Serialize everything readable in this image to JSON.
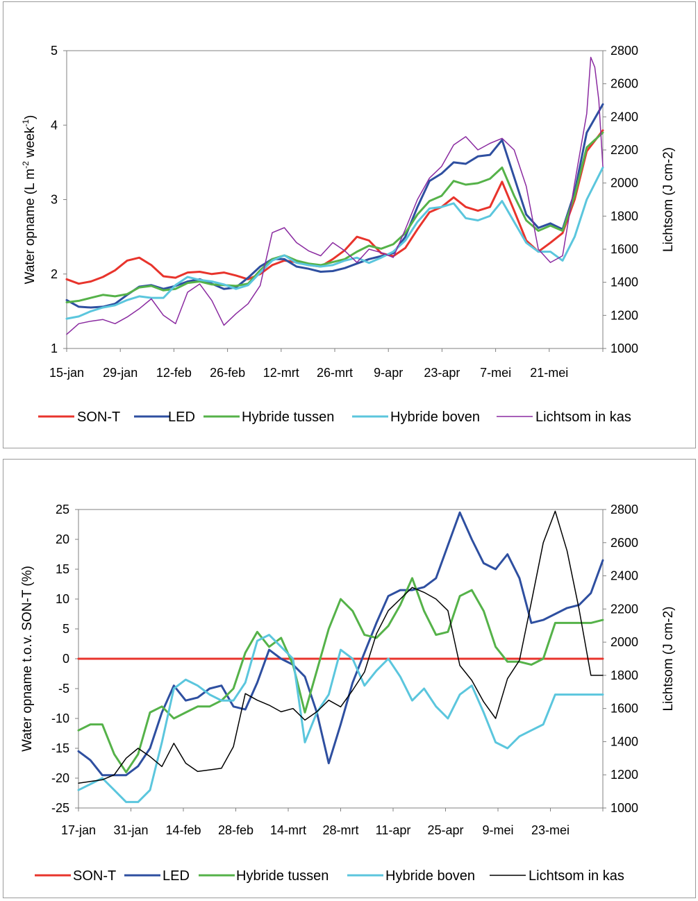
{
  "chart_data": [
    {
      "type": "line",
      "title": "",
      "x_ticks": [
        "15-jan",
        "29-jan",
        "12-feb",
        "26-feb",
        "12-mrt",
        "26-mrt",
        "9-apr",
        "23-apr",
        "7-mei",
        "21-mei"
      ],
      "ylabel": "Water opname (L m-2 week-1)",
      "ylabel_parts": [
        "Water opname (L m",
        "-2",
        " week",
        "-1",
        ")"
      ],
      "ylim": [
        1,
        5
      ],
      "y_ticks": [
        "1",
        "2",
        "3",
        "4",
        "5"
      ],
      "y2label": "Lichtsom (J cm-2)",
      "y2lim": [
        1000,
        2800
      ],
      "y2_ticks": [
        "1000",
        "1200",
        "1400",
        "1600",
        "1800",
        "2000",
        "2200",
        "2400",
        "2600",
        "2800"
      ],
      "grid": false,
      "legend_position": "bottom",
      "series": [
        {
          "name": "SON-T",
          "axis": "left",
          "color": "#e8342c",
          "x": [
            0,
            3,
            6,
            9,
            12,
            15,
            18,
            21,
            24,
            27,
            30,
            33,
            36,
            39,
            42,
            45,
            48,
            51,
            54,
            57,
            60,
            63,
            66,
            69,
            72,
            75,
            78,
            81,
            84,
            87,
            90,
            93,
            96,
            99,
            102,
            105,
            108,
            111,
            114,
            117,
            120,
            123,
            126,
            129,
            133
          ],
          "y": [
            1.93,
            1.87,
            1.9,
            1.96,
            2.05,
            2.18,
            2.22,
            2.12,
            1.97,
            1.95,
            2.02,
            2.03,
            2.0,
            2.02,
            1.98,
            1.93,
            2.0,
            2.12,
            2.18,
            2.16,
            2.12,
            2.1,
            2.2,
            2.32,
            2.5,
            2.45,
            2.28,
            2.24,
            2.35,
            2.6,
            2.83,
            2.9,
            3.03,
            2.9,
            2.85,
            2.9,
            3.24,
            2.85,
            2.45,
            2.3,
            2.42,
            2.55,
            3.0,
            3.65,
            3.93
          ]
        },
        {
          "name": "LED",
          "axis": "left",
          "color": "#2e4fa0",
          "x": [
            0,
            3,
            6,
            9,
            12,
            15,
            18,
            21,
            24,
            27,
            30,
            33,
            36,
            39,
            42,
            45,
            48,
            51,
            54,
            57,
            60,
            63,
            66,
            69,
            72,
            75,
            78,
            81,
            84,
            87,
            90,
            93,
            96,
            99,
            102,
            105,
            108,
            111,
            114,
            117,
            120,
            123,
            126,
            129,
            133
          ],
          "y": [
            1.65,
            1.56,
            1.55,
            1.56,
            1.6,
            1.72,
            1.83,
            1.85,
            1.8,
            1.84,
            1.9,
            1.93,
            1.87,
            1.8,
            1.82,
            1.95,
            2.1,
            2.2,
            2.2,
            2.1,
            2.07,
            2.03,
            2.04,
            2.08,
            2.14,
            2.2,
            2.24,
            2.28,
            2.5,
            2.9,
            3.25,
            3.35,
            3.5,
            3.48,
            3.58,
            3.6,
            3.8,
            3.3,
            2.8,
            2.62,
            2.68,
            2.6,
            3.1,
            3.9,
            4.28
          ]
        },
        {
          "name": "Hybride tussen",
          "axis": "left",
          "color": "#55b249",
          "x": [
            0,
            3,
            6,
            9,
            12,
            15,
            18,
            21,
            24,
            27,
            30,
            33,
            36,
            39,
            42,
            45,
            48,
            51,
            54,
            57,
            60,
            63,
            66,
            69,
            72,
            75,
            78,
            81,
            84,
            87,
            90,
            93,
            96,
            99,
            102,
            105,
            108,
            111,
            114,
            117,
            120,
            123,
            126,
            129,
            133
          ],
          "y": [
            1.62,
            1.64,
            1.68,
            1.72,
            1.7,
            1.73,
            1.82,
            1.84,
            1.78,
            1.8,
            1.88,
            1.9,
            1.86,
            1.85,
            1.84,
            1.87,
            2.05,
            2.2,
            2.25,
            2.18,
            2.14,
            2.12,
            2.16,
            2.2,
            2.3,
            2.38,
            2.34,
            2.4,
            2.55,
            2.8,
            2.98,
            3.05,
            3.25,
            3.2,
            3.22,
            3.28,
            3.43,
            3.05,
            2.72,
            2.58,
            2.65,
            2.58,
            3.05,
            3.7,
            3.9
          ]
        },
        {
          "name": "Hybride boven",
          "axis": "left",
          "color": "#5bc6dd",
          "x": [
            0,
            3,
            6,
            9,
            12,
            15,
            18,
            21,
            24,
            27,
            30,
            33,
            36,
            39,
            42,
            45,
            48,
            51,
            54,
            57,
            60,
            63,
            66,
            69,
            72,
            75,
            78,
            81,
            84,
            87,
            90,
            93,
            96,
            99,
            102,
            105,
            108,
            111,
            114,
            117,
            120,
            123,
            126,
            129,
            133
          ],
          "y": [
            1.4,
            1.43,
            1.5,
            1.55,
            1.58,
            1.65,
            1.7,
            1.68,
            1.68,
            1.85,
            1.96,
            1.92,
            1.9,
            1.86,
            1.8,
            1.85,
            2.02,
            2.18,
            2.25,
            2.15,
            2.12,
            2.1,
            2.12,
            2.18,
            2.22,
            2.15,
            2.22,
            2.3,
            2.45,
            2.7,
            2.88,
            2.9,
            2.95,
            2.75,
            2.72,
            2.78,
            2.98,
            2.7,
            2.42,
            2.3,
            2.3,
            2.18,
            2.5,
            3.0,
            3.43
          ]
        },
        {
          "name": "Lichtsom in kas",
          "axis": "right",
          "color": "#8a2aa0",
          "x": [
            0,
            3,
            6,
            9,
            12,
            15,
            18,
            21,
            24,
            27,
            30,
            33,
            36,
            39,
            42,
            45,
            48,
            51,
            54,
            57,
            60,
            63,
            66,
            69,
            72,
            75,
            78,
            81,
            84,
            87,
            90,
            93,
            96,
            99,
            102,
            105,
            108,
            111,
            114,
            117,
            120,
            123,
            126,
            129,
            130,
            131,
            132,
            133
          ],
          "y": [
            1085,
            1150,
            1165,
            1175,
            1150,
            1190,
            1240,
            1300,
            1200,
            1150,
            1340,
            1390,
            1290,
            1140,
            1210,
            1270,
            1380,
            1700,
            1730,
            1640,
            1590,
            1560,
            1640,
            1590,
            1520,
            1600,
            1580,
            1550,
            1720,
            1900,
            2030,
            2100,
            2230,
            2280,
            2200,
            2240,
            2270,
            2200,
            1980,
            1600,
            1520,
            1560,
            2000,
            2420,
            2760,
            2700,
            2500,
            2100
          ]
        }
      ]
    },
    {
      "type": "line",
      "title": "",
      "x_ticks": [
        "17-jan",
        "31-jan",
        "14-feb",
        "28-feb",
        "14-mrt",
        "28-mrt",
        "11-apr",
        "25-apr",
        "9-mei",
        "23-mei"
      ],
      "ylabel": "Water opname t.o.v. SON-T (%)",
      "ylim": [
        -25,
        25
      ],
      "y_ticks": [
        "-25",
        "-20",
        "-15",
        "-10",
        "-5",
        "0",
        "5",
        "10",
        "15",
        "20",
        "25"
      ],
      "y2label": "Lichtsom (J cm-2)",
      "y2lim": [
        1000,
        2800
      ],
      "y2_ticks": [
        "1000",
        "1200",
        "1400",
        "1600",
        "1800",
        "2000",
        "2200",
        "2400",
        "2600",
        "2800"
      ],
      "grid": false,
      "legend_position": "bottom",
      "series": [
        {
          "name": "SON-T",
          "axis": "left",
          "color": "#e8342c",
          "x": [
            0,
            132
          ],
          "y": [
            0,
            0
          ]
        },
        {
          "name": "LED",
          "axis": "left",
          "color": "#2e4fa0",
          "x": [
            0,
            3,
            6,
            9,
            12,
            15,
            18,
            21,
            24,
            27,
            30,
            33,
            36,
            39,
            42,
            45,
            48,
            51,
            54,
            57,
            60,
            63,
            66,
            69,
            72,
            75,
            78,
            81,
            84,
            87,
            90,
            93,
            96,
            99,
            102,
            105,
            108,
            111,
            114,
            117,
            120,
            123,
            126,
            129,
            132
          ],
          "y": [
            -15.5,
            -17,
            -19.5,
            -19.5,
            -19.5,
            -18,
            -15,
            -9,
            -4.5,
            -7,
            -6.5,
            -5,
            -4.5,
            -8,
            -8.5,
            -4,
            1.5,
            0,
            -1,
            -3,
            -9,
            -17.5,
            -11,
            -4,
            1,
            6,
            10.5,
            11.5,
            11.5,
            12,
            13.5,
            19,
            24.5,
            20,
            16,
            15,
            17.5,
            13.5,
            6,
            6.5,
            7.5,
            8.5,
            9,
            11,
            16.5
          ]
        },
        {
          "name": "Hybride tussen",
          "axis": "left",
          "color": "#55b249",
          "x": [
            0,
            3,
            6,
            9,
            12,
            15,
            18,
            21,
            24,
            27,
            30,
            33,
            36,
            39,
            42,
            45,
            48,
            51,
            54,
            57,
            60,
            63,
            66,
            69,
            72,
            75,
            78,
            81,
            84,
            87,
            90,
            93,
            96,
            99,
            102,
            105,
            108,
            111,
            114,
            117,
            120,
            123,
            126,
            129,
            132
          ],
          "y": [
            -12,
            -11,
            -11,
            -16,
            -19,
            -16,
            -9,
            -8,
            -10,
            -9,
            -8,
            -8,
            -7,
            -5,
            1,
            4.5,
            2,
            3.5,
            -1,
            -9,
            -2,
            5,
            10,
            8,
            4,
            3.5,
            5.5,
            9,
            13.5,
            8,
            4,
            4.5,
            10.5,
            11.5,
            8,
            2,
            -0.5,
            -0.5,
            -1,
            0,
            6,
            6,
            6,
            6,
            6.5
          ]
        },
        {
          "name": "Hybride boven",
          "axis": "left",
          "color": "#5bc6dd",
          "x": [
            0,
            3,
            6,
            9,
            12,
            15,
            18,
            21,
            24,
            27,
            30,
            33,
            36,
            39,
            42,
            45,
            48,
            51,
            54,
            57,
            60,
            63,
            66,
            69,
            72,
            75,
            78,
            81,
            84,
            87,
            90,
            93,
            96,
            99,
            102,
            105,
            108,
            111,
            114,
            117,
            120,
            123,
            126,
            129,
            132
          ],
          "y": [
            -22,
            -21,
            -20,
            -22,
            -24,
            -24,
            -22,
            -14,
            -5,
            -3.5,
            -4.5,
            -6,
            -7,
            -7,
            -4,
            3,
            4,
            2,
            0,
            -14,
            -9,
            -6,
            1.5,
            0,
            -4.5,
            -2,
            0,
            -3,
            -7,
            -5,
            -8,
            -10,
            -6,
            -4.5,
            -9,
            -14,
            -15,
            -13,
            -12,
            -11,
            -6,
            -6,
            -6,
            -6,
            -6
          ]
        },
        {
          "name": "Lichtsom in kas",
          "axis": "right",
          "color": "#000000",
          "x": [
            0,
            3,
            6,
            9,
            12,
            15,
            18,
            21,
            24,
            27,
            30,
            33,
            36,
            39,
            42,
            45,
            48,
            51,
            54,
            57,
            60,
            63,
            66,
            69,
            72,
            75,
            78,
            81,
            84,
            87,
            90,
            93,
            96,
            99,
            102,
            105,
            108,
            111,
            114,
            117,
            120,
            123,
            126,
            129,
            130,
            131,
            132
          ],
          "y": [
            1150,
            1160,
            1170,
            1200,
            1300,
            1360,
            1310,
            1250,
            1390,
            1270,
            1220,
            1230,
            1240,
            1370,
            1690,
            1650,
            1620,
            1580,
            1600,
            1530,
            1580,
            1650,
            1610,
            1710,
            1820,
            2050,
            2190,
            2260,
            2330,
            2300,
            2260,
            2190,
            1860,
            1770,
            1640,
            1540,
            1780,
            1890,
            2240,
            2600,
            2790,
            2550,
            2200,
            1800,
            1800,
            1800,
            1800
          ]
        }
      ]
    }
  ],
  "legend": {
    "top": [
      "SON-T",
      "LED",
      "Hybride tussen",
      "Hybride boven",
      "Lichtsom in kas"
    ],
    "bottom": [
      "SON-T",
      "LED",
      "Hybride tussen",
      "Hybride boven",
      "Lichtsom in kas"
    ]
  }
}
